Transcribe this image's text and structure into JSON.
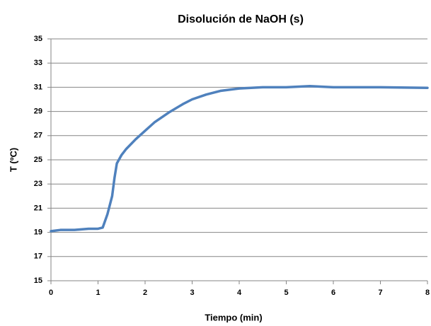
{
  "chart_data": {
    "type": "line",
    "title": "Disolución de NaOH (s)",
    "x_label": "Tiempo (min)",
    "y_label": "T (ºC)",
    "x": [
      0,
      0.2,
      0.5,
      0.8,
      1.0,
      1.1,
      1.2,
      1.3,
      1.35,
      1.4,
      1.5,
      1.6,
      1.8,
      2.0,
      2.2,
      2.5,
      2.8,
      3.0,
      3.3,
      3.6,
      4.0,
      4.5,
      5.0,
      5.5,
      6.0,
      7.0,
      8.0
    ],
    "series": [
      {
        "name": "T",
        "color": "#4f81bd",
        "values": [
          19.1,
          19.2,
          19.2,
          19.3,
          19.3,
          19.4,
          20.5,
          22.0,
          23.5,
          24.7,
          25.4,
          25.9,
          26.7,
          27.4,
          28.1,
          28.9,
          29.6,
          30.0,
          30.4,
          30.7,
          30.9,
          31.0,
          31.0,
          31.1,
          31.0,
          31.0,
          30.95
        ]
      }
    ],
    "xlim": [
      0,
      8
    ],
    "xticks": [
      0,
      1,
      2,
      3,
      4,
      5,
      6,
      7,
      8
    ],
    "ylim": [
      15,
      35
    ],
    "yticks": [
      15,
      17,
      19,
      21,
      23,
      25,
      27,
      29,
      31,
      33,
      35
    ],
    "grid": true
  }
}
